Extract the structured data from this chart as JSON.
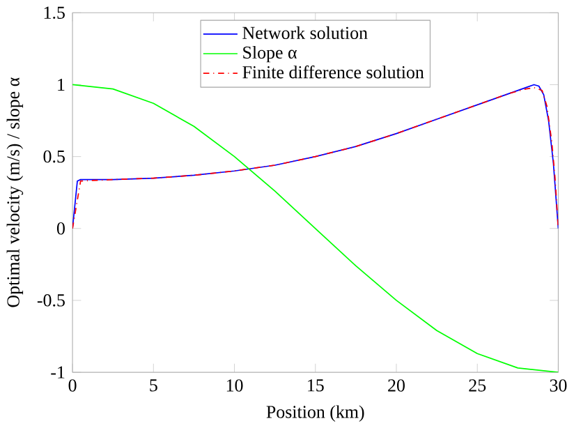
{
  "chart_data": {
    "type": "line",
    "xlabel": "Position (km)",
    "ylabel": "Optimal velocity (m/s) / slope α",
    "xlim": [
      0,
      30
    ],
    "ylim": [
      -1,
      1.5
    ],
    "xticks": [
      0,
      5,
      10,
      15,
      20,
      25,
      30
    ],
    "yticks": [
      -1,
      -0.5,
      0,
      0.5,
      1,
      1.5
    ],
    "legend": "top",
    "grid": false,
    "series": [
      {
        "name": "Network solution",
        "color": "#0000ff",
        "line_style": "solid",
        "x": [
          0,
          0.3,
          0.5,
          2.5,
          5,
          7.5,
          10,
          12.5,
          15,
          17.5,
          20,
          22.5,
          25,
          27,
          28,
          28.5,
          28.8,
          29.1,
          29.4,
          29.7,
          30
        ],
        "values": [
          0,
          0.33,
          0.34,
          0.34,
          0.35,
          0.37,
          0.4,
          0.44,
          0.5,
          0.57,
          0.66,
          0.76,
          0.86,
          0.94,
          0.98,
          1.0,
          0.99,
          0.93,
          0.75,
          0.45,
          0
        ]
      },
      {
        "name": "Slope α",
        "color": "#00ff00",
        "line_style": "solid",
        "x": [
          0,
          2.5,
          5,
          7.5,
          10,
          12.5,
          15,
          17.5,
          20,
          22.5,
          25,
          27.5,
          30
        ],
        "values": [
          1,
          0.97,
          0.87,
          0.71,
          0.5,
          0.26,
          0,
          -0.26,
          -0.5,
          -0.71,
          -0.87,
          -0.97,
          -1
        ]
      },
      {
        "name": "Finite difference solution",
        "color": "#ff0000",
        "line_style": "dashdot",
        "x": [
          0,
          0.5,
          2.5,
          5,
          7.5,
          10,
          12.5,
          15,
          17.5,
          20,
          22.5,
          25,
          27,
          28,
          28.5,
          29,
          29.3,
          29.6,
          29.8,
          30
        ],
        "values": [
          0,
          0.33,
          0.34,
          0.35,
          0.37,
          0.4,
          0.44,
          0.5,
          0.57,
          0.66,
          0.76,
          0.86,
          0.94,
          0.97,
          0.98,
          0.96,
          0.85,
          0.6,
          0.35,
          0
        ]
      }
    ]
  }
}
